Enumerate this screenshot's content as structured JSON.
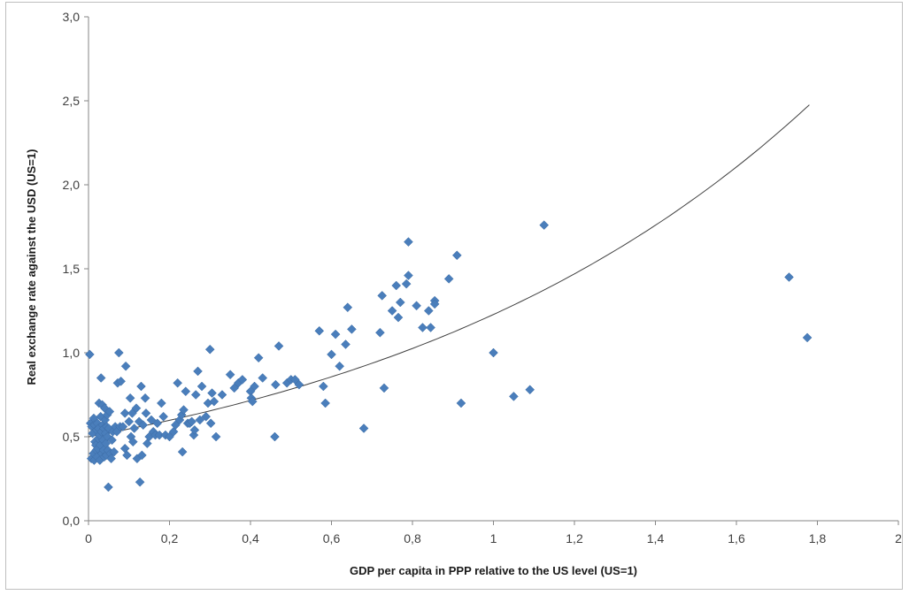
{
  "chart_data": {
    "type": "scatter",
    "title": "",
    "xlabel": "GDP per capita in PPP relative to the US level (US=1)",
    "ylabel": "Real exchange rate against the USD (US=1)",
    "xlim": [
      0,
      2
    ],
    "ylim": [
      0,
      3
    ],
    "x_ticks": [
      0,
      0.2,
      0.4,
      0.6,
      0.8,
      1,
      1.2,
      1.4,
      1.6,
      1.8,
      2
    ],
    "x_tick_labels": [
      "0",
      "0,2",
      "0,4",
      "0,6",
      "0,8",
      "1",
      "1,2",
      "1,4",
      "1,6",
      "1,8",
      "2"
    ],
    "y_ticks": [
      0,
      0.5,
      1,
      1.5,
      2,
      2.5,
      3
    ],
    "y_tick_labels": [
      "0,0",
      "0,5",
      "1,0",
      "1,5",
      "2,0",
      "2,5",
      "3,0"
    ],
    "grid": false,
    "legend": "none",
    "marker_color": "#4a7ebb",
    "trendline_color": "#404040",
    "trendline": {
      "type": "exponential",
      "x_range": [
        0,
        1.78
      ],
      "points": [
        [
          0,
          0.5
        ],
        [
          0.4,
          0.72
        ],
        [
          0.8,
          1.03
        ],
        [
          1.2,
          1.44
        ],
        [
          1.6,
          2.08
        ],
        [
          1.78,
          2.53
        ]
      ]
    },
    "series": [
      {
        "points": [
          [
            0.003,
            0.99
          ],
          [
            0.005,
            0.58
          ],
          [
            0.007,
            0.37
          ],
          [
            0.008,
            0.56
          ],
          [
            0.01,
            0.52
          ],
          [
            0.012,
            0.4
          ],
          [
            0.013,
            0.61
          ],
          [
            0.014,
            0.36
          ],
          [
            0.015,
            0.57
          ],
          [
            0.016,
            0.47
          ],
          [
            0.018,
            0.45
          ],
          [
            0.019,
            0.42
          ],
          [
            0.02,
            0.54
          ],
          [
            0.021,
            0.38
          ],
          [
            0.022,
            0.58
          ],
          [
            0.023,
            0.43
          ],
          [
            0.024,
            0.49
          ],
          [
            0.025,
            0.55
          ],
          [
            0.026,
            0.7
          ],
          [
            0.027,
            0.51
          ],
          [
            0.028,
            0.36
          ],
          [
            0.029,
            0.45
          ],
          [
            0.03,
            0.62
          ],
          [
            0.031,
            0.85
          ],
          [
            0.032,
            0.53
          ],
          [
            0.033,
            0.4
          ],
          [
            0.034,
            0.69
          ],
          [
            0.035,
            0.57
          ],
          [
            0.036,
            0.48
          ],
          [
            0.037,
            0.42
          ],
          [
            0.038,
            0.55
          ],
          [
            0.039,
            0.38
          ],
          [
            0.04,
            0.67
          ],
          [
            0.041,
            0.6
          ],
          [
            0.042,
            0.52
          ],
          [
            0.043,
            0.46
          ],
          [
            0.044,
            0.39
          ],
          [
            0.045,
            0.56
          ],
          [
            0.046,
            0.63
          ],
          [
            0.047,
            0.5
          ],
          [
            0.048,
            0.42
          ],
          [
            0.049,
            0.2
          ],
          [
            0.05,
            0.55
          ],
          [
            0.052,
            0.65
          ],
          [
            0.054,
            0.4
          ],
          [
            0.056,
            0.37
          ],
          [
            0.058,
            0.48
          ],
          [
            0.06,
            0.53
          ],
          [
            0.063,
            0.41
          ],
          [
            0.066,
            0.56
          ],
          [
            0.07,
            0.53
          ],
          [
            0.072,
            0.82
          ],
          [
            0.075,
            1.0
          ],
          [
            0.078,
            0.56
          ],
          [
            0.08,
            0.83
          ],
          [
            0.085,
            0.56
          ],
          [
            0.09,
            0.64
          ],
          [
            0.09,
            0.43
          ],
          [
            0.092,
            0.92
          ],
          [
            0.095,
            0.39
          ],
          [
            0.1,
            0.59
          ],
          [
            0.103,
            0.73
          ],
          [
            0.105,
            0.5
          ],
          [
            0.108,
            0.64
          ],
          [
            0.11,
            0.47
          ],
          [
            0.113,
            0.55
          ],
          [
            0.118,
            0.67
          ],
          [
            0.12,
            0.37
          ],
          [
            0.125,
            0.59
          ],
          [
            0.127,
            0.23
          ],
          [
            0.13,
            0.8
          ],
          [
            0.132,
            0.39
          ],
          [
            0.135,
            0.57
          ],
          [
            0.14,
            0.73
          ],
          [
            0.142,
            0.64
          ],
          [
            0.145,
            0.46
          ],
          [
            0.15,
            0.5
          ],
          [
            0.155,
            0.6
          ],
          [
            0.16,
            0.53
          ],
          [
            0.165,
            0.51
          ],
          [
            0.17,
            0.58
          ],
          [
            0.175,
            0.51
          ],
          [
            0.18,
            0.7
          ],
          [
            0.185,
            0.62
          ],
          [
            0.19,
            0.51
          ],
          [
            0.2,
            0.5
          ],
          [
            0.21,
            0.53
          ],
          [
            0.215,
            0.57
          ],
          [
            0.22,
            0.82
          ],
          [
            0.225,
            0.6
          ],
          [
            0.23,
            0.63
          ],
          [
            0.232,
            0.41
          ],
          [
            0.235,
            0.66
          ],
          [
            0.24,
            0.77
          ],
          [
            0.245,
            0.58
          ],
          [
            0.25,
            0.58
          ],
          [
            0.255,
            0.59
          ],
          [
            0.26,
            0.51
          ],
          [
            0.262,
            0.54
          ],
          [
            0.265,
            0.75
          ],
          [
            0.27,
            0.89
          ],
          [
            0.275,
            0.6
          ],
          [
            0.28,
            0.8
          ],
          [
            0.29,
            0.62
          ],
          [
            0.295,
            0.7
          ],
          [
            0.3,
            1.02
          ],
          [
            0.302,
            0.58
          ],
          [
            0.305,
            0.76
          ],
          [
            0.31,
            0.71
          ],
          [
            0.315,
            0.5
          ],
          [
            0.33,
            0.75
          ],
          [
            0.35,
            0.87
          ],
          [
            0.36,
            0.79
          ],
          [
            0.37,
            0.82
          ],
          [
            0.38,
            0.84
          ],
          [
            0.4,
            0.77
          ],
          [
            0.402,
            0.73
          ],
          [
            0.405,
            0.71
          ],
          [
            0.41,
            0.8
          ],
          [
            0.42,
            0.97
          ],
          [
            0.43,
            0.85
          ],
          [
            0.46,
            0.5
          ],
          [
            0.462,
            0.81
          ],
          [
            0.47,
            1.04
          ],
          [
            0.49,
            0.82
          ],
          [
            0.5,
            0.84
          ],
          [
            0.51,
            0.84
          ],
          [
            0.52,
            0.81
          ],
          [
            0.57,
            1.13
          ],
          [
            0.58,
            0.8
          ],
          [
            0.585,
            0.7
          ],
          [
            0.6,
            0.99
          ],
          [
            0.61,
            1.11
          ],
          [
            0.62,
            0.92
          ],
          [
            0.635,
            1.05
          ],
          [
            0.64,
            1.27
          ],
          [
            0.65,
            1.14
          ],
          [
            0.68,
            0.55
          ],
          [
            0.72,
            1.12
          ],
          [
            0.725,
            1.34
          ],
          [
            0.73,
            0.79
          ],
          [
            0.75,
            1.25
          ],
          [
            0.76,
            1.4
          ],
          [
            0.765,
            1.21
          ],
          [
            0.77,
            1.3
          ],
          [
            0.785,
            1.41
          ],
          [
            0.79,
            1.46
          ],
          [
            0.79,
            1.66
          ],
          [
            0.81,
            1.28
          ],
          [
            0.825,
            1.15
          ],
          [
            0.84,
            1.25
          ],
          [
            0.845,
            1.15
          ],
          [
            0.855,
            1.31
          ],
          [
            0.855,
            1.29
          ],
          [
            0.89,
            1.44
          ],
          [
            0.91,
            1.58
          ],
          [
            0.92,
            0.7
          ],
          [
            1.0,
            1.0
          ],
          [
            1.05,
            0.74
          ],
          [
            1.09,
            0.78
          ],
          [
            1.125,
            1.76
          ],
          [
            1.73,
            1.45
          ],
          [
            1.775,
            1.09
          ]
        ]
      }
    ]
  }
}
